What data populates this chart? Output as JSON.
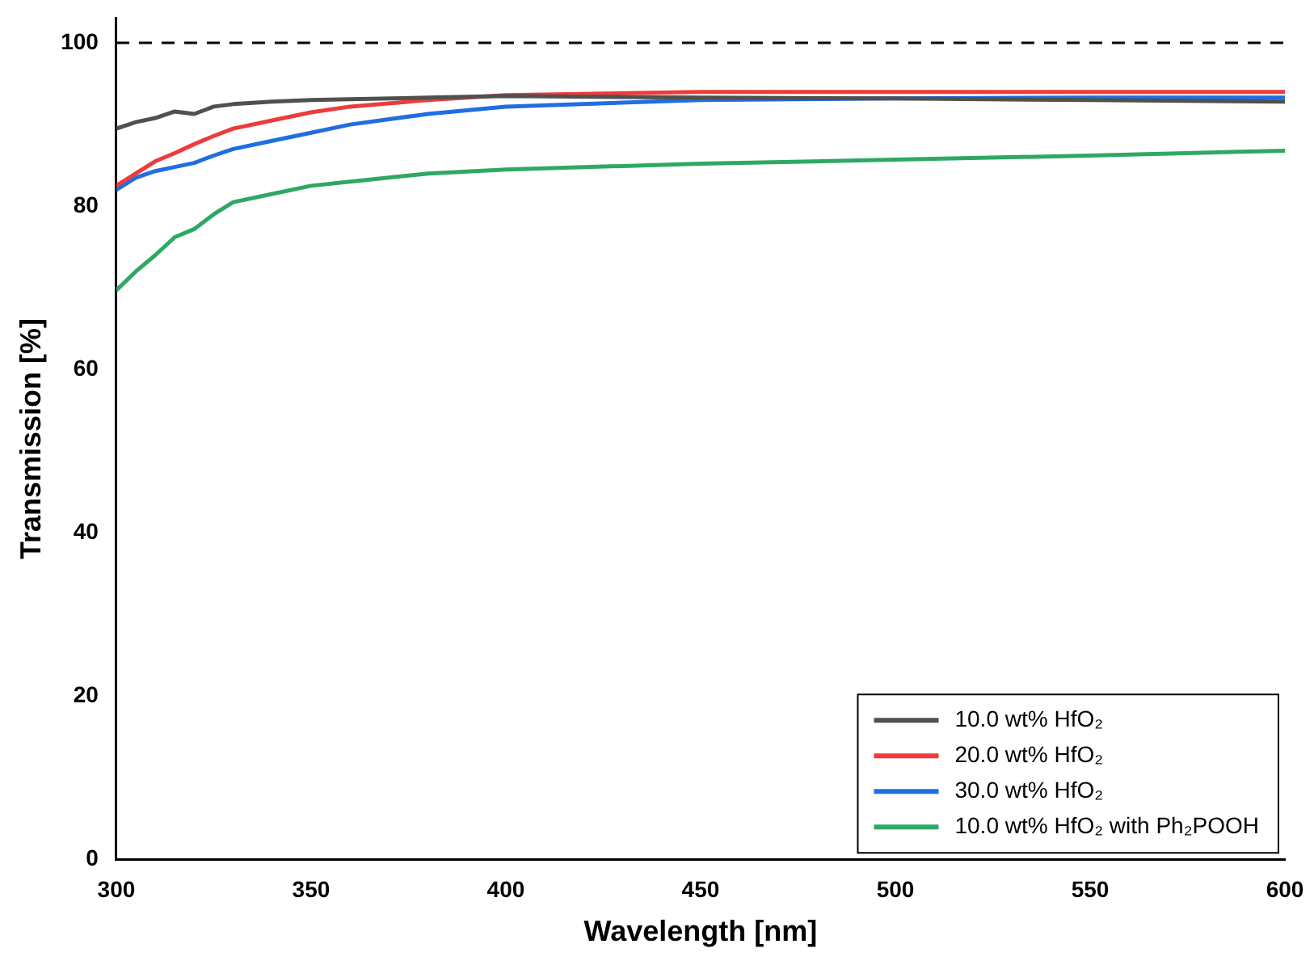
{
  "chart_data": {
    "type": "line",
    "xlabel": "Wavelength [nm]",
    "ylabel": "Transmission [%]",
    "xlim": [
      300,
      600
    ],
    "xticks": [
      300,
      350,
      400,
      450,
      500,
      550,
      600
    ],
    "ylim": [
      0,
      103
    ],
    "yticks": [
      0,
      20,
      40,
      60,
      80,
      100
    ],
    "grid": false,
    "legend": "bottom right",
    "marker": "none",
    "line_style": "solid",
    "x": [
      300,
      305,
      310,
      315,
      320,
      325,
      330,
      340,
      350,
      360,
      380,
      400,
      450,
      500,
      550,
      600
    ],
    "series": [
      {
        "name": "10.0 wt% HfO₂",
        "color": "#505050",
        "values": [
          89.5,
          90.3,
          90.8,
          91.6,
          91.3,
          92.2,
          92.5,
          92.8,
          93.0,
          93.1,
          93.3,
          93.5,
          93.3,
          93.2,
          93.0,
          92.8
        ]
      },
      {
        "name": "20.0 wt% HfO₂",
        "color": "#ee3b3b",
        "values": [
          82.5,
          84,
          85.5,
          86.5,
          87.6,
          88.6,
          89.5,
          90.5,
          91.5,
          92.2,
          93.0,
          93.6,
          94.0,
          94.0,
          94.0,
          94.0
        ]
      },
      {
        "name": "30.0 wt% HfO₂",
        "color": "#1f6fe0",
        "values": [
          82,
          83.5,
          84.3,
          84.8,
          85.3,
          86.2,
          87,
          88,
          89,
          90,
          91.3,
          92.2,
          93.0,
          93.2,
          93.3,
          93.3
        ]
      },
      {
        "name": "10.0 wt% HfO₂ with Ph₂POOH",
        "color": "#2ea865",
        "values": [
          69.7,
          72,
          74,
          76.2,
          77.2,
          79,
          80.5,
          81.5,
          82.5,
          83,
          84,
          84.5,
          85.2,
          85.7,
          86.2,
          86.8
        ]
      }
    ],
    "ref_lines": [
      {
        "axis": "y",
        "value": 100,
        "line_style": "dashed",
        "color": "#000000"
      }
    ]
  }
}
